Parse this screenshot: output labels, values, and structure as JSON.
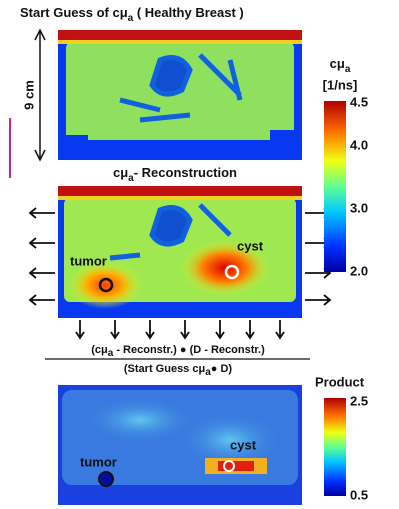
{
  "panels": [
    {
      "title": {
        "pre": "Start Guess of cμ",
        "sub": "a",
        "post": " ( Healthy Breast )"
      },
      "scale_label": "9 cm"
    },
    {
      "title": {
        "pre": "cμ",
        "sub": "a",
        "post": "- Reconstruction"
      },
      "labels": [
        "tumor",
        "cyst"
      ]
    },
    {
      "labels": [
        "tumor",
        "cyst"
      ]
    }
  ],
  "formula": {
    "numerator": {
      "pre": "(cμ",
      "sub": "a",
      "post": " - Reconstr.) ● (D - Reconstr.)"
    },
    "denominator": {
      "pre": "(Start Guess  cμ",
      "sub": "a",
      "post": "● D)"
    }
  },
  "colorbars": [
    {
      "title": {
        "pre": "cμ",
        "sub": "a"
      },
      "unit": "[1/ns]",
      "ticks": [
        "4.5",
        "4.0",
        "3.0",
        "2.0"
      ]
    },
    {
      "title": "Product",
      "ticks": [
        "2.5",
        "0.5"
      ]
    }
  ]
}
